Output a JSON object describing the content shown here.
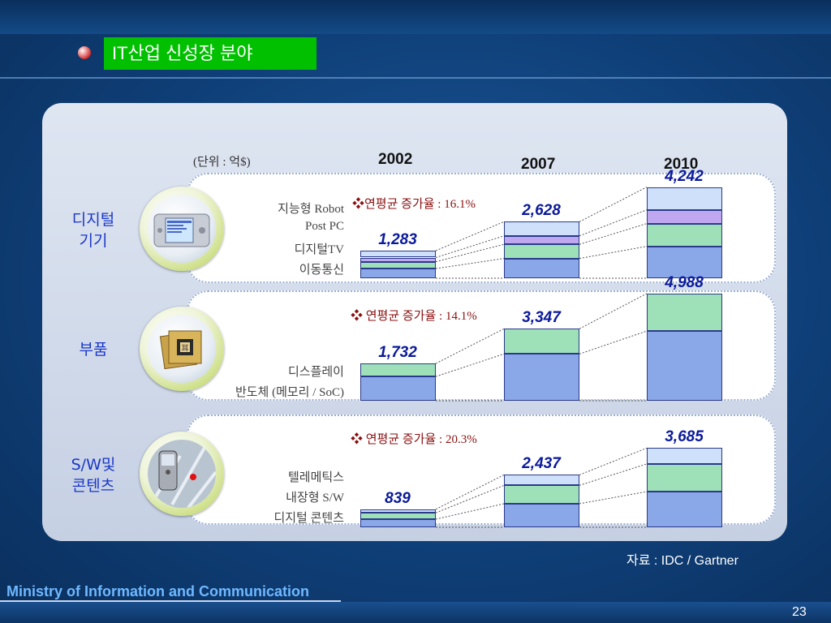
{
  "slide": {
    "title": "IT산업 신성장 분야",
    "unit": "(단위 : 억$)",
    "source": "자료 : IDC / Gartner",
    "footer": "Ministry of Information and Communication",
    "page_number": "23"
  },
  "years": [
    "2002",
    "2007",
    "2010"
  ],
  "colors": {
    "title_bg": "#00c000",
    "category_text": "#1a36c8",
    "value_text": "#0a1a9a",
    "cagr_text": "#8a1010",
    "seg_blue": "#8aa8e8",
    "seg_green": "#9ee0b8",
    "seg_purple": "#c0a8f0",
    "seg_lightblue": "#cfe0fa"
  },
  "chart_data": [
    {
      "type": "bar",
      "category": "디지털\n기기",
      "category_lines": [
        "디지털",
        "기기"
      ],
      "cagr": "❖연평균 증가율 : 16.1%",
      "categories": [
        "2002",
        "2007",
        "2010"
      ],
      "totals": [
        1283,
        2628,
        4242
      ],
      "total_labels": [
        "1,283",
        "2,628",
        "4,242"
      ],
      "segments": [
        "이동통신",
        "디지털TV",
        "Post PC",
        "지능형 Robot"
      ],
      "segment_labels_top_to_bottom": [
        "지능형 Robot",
        "Post PC",
        "디지털TV",
        "이동통신"
      ]
    },
    {
      "type": "bar",
      "category": "부품",
      "category_lines": [
        "부품"
      ],
      "cagr": "❖ 연평균 증가율 : 14.1%",
      "categories": [
        "2002",
        "2007",
        "2010"
      ],
      "totals": [
        1732,
        3347,
        4988
      ],
      "total_labels": [
        "1,732",
        "3,347",
        "4,988"
      ],
      "segments": [
        "반도체 (메모리 / SoC)",
        "디스플레이"
      ],
      "segment_labels_top_to_bottom": [
        "디스플레이",
        "반도체 (메모리 / SoC)"
      ]
    },
    {
      "type": "bar",
      "category": "S/W및\n콘텐츠",
      "category_lines": [
        "S/W및",
        "콘텐츠"
      ],
      "cagr": "❖ 연평균 증가율 : 20.3%",
      "categories": [
        "2002",
        "2007",
        "2010"
      ],
      "totals": [
        839,
        2437,
        3685
      ],
      "total_labels": [
        "839",
        "2,437",
        "3,685"
      ],
      "segments": [
        "디지털 콘텐츠",
        "내장형 S/W",
        "텔레메틱스"
      ],
      "segment_labels_top_to_bottom": [
        "텔레메틱스",
        "내장형 S/W",
        "디지털 콘텐츠"
      ]
    }
  ]
}
